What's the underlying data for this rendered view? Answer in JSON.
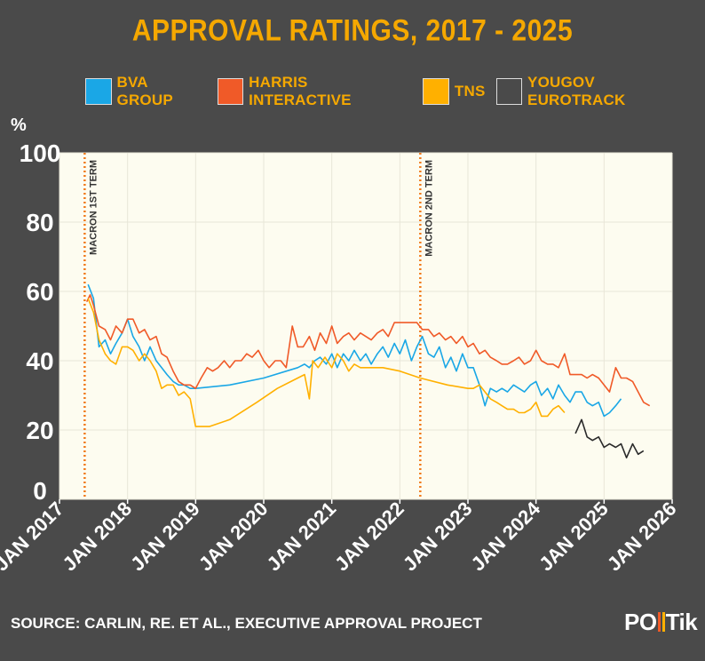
{
  "chart_data": {
    "type": "line",
    "title": "APPROVAL RATINGS, 2017 - 2025",
    "ylabel": "%",
    "xlabel": "",
    "ylim": [
      0,
      100
    ],
    "xlim": [
      2017.0,
      2026.0
    ],
    "yticks": [
      0,
      20,
      40,
      60,
      80,
      100
    ],
    "xticks": [
      {
        "value": 2017,
        "label": "JAN 2017"
      },
      {
        "value": 2018,
        "label": "JAN 2018"
      },
      {
        "value": 2019,
        "label": "JAN 2019"
      },
      {
        "value": 2020,
        "label": "JAN 2020"
      },
      {
        "value": 2021,
        "label": "JAN 2021"
      },
      {
        "value": 2022,
        "label": "JAN 2022"
      },
      {
        "value": 2023,
        "label": "JAN 2023"
      },
      {
        "value": 2024,
        "label": "JAN 2024"
      },
      {
        "value": 2025,
        "label": "JAN 2025"
      },
      {
        "value": 2026,
        "label": "JAN 2026"
      }
    ],
    "grid": true,
    "legend_position": "top",
    "annotations": [
      {
        "x": 2017.37,
        "label": "MACRON 1ST TERM"
      },
      {
        "x": 2022.3,
        "label": "MACRON 2ND TERM"
      }
    ],
    "series": [
      {
        "name": "BVA GROUP",
        "color": "#1aa7e6",
        "points": [
          [
            2017.42,
            62
          ],
          [
            2017.5,
            58
          ],
          [
            2017.58,
            44
          ],
          [
            2017.67,
            46
          ],
          [
            2017.75,
            42
          ],
          [
            2017.83,
            45
          ],
          [
            2017.92,
            48
          ],
          [
            2018.0,
            52
          ],
          [
            2018.08,
            47
          ],
          [
            2018.17,
            44
          ],
          [
            2018.25,
            40
          ],
          [
            2018.33,
            44
          ],
          [
            2018.42,
            40
          ],
          [
            2018.5,
            38
          ],
          [
            2018.58,
            36
          ],
          [
            2018.67,
            34
          ],
          [
            2018.75,
            33
          ],
          [
            2018.83,
            33
          ],
          [
            2018.92,
            32
          ],
          [
            2019.0,
            32
          ],
          [
            2019.5,
            33
          ],
          [
            2020.0,
            35
          ],
          [
            2020.5,
            38
          ],
          [
            2020.6,
            39
          ],
          [
            2020.67,
            38
          ],
          [
            2020.75,
            40
          ],
          [
            2020.83,
            41
          ],
          [
            2020.92,
            39
          ],
          [
            2021.0,
            42
          ],
          [
            2021.08,
            38
          ],
          [
            2021.17,
            42
          ],
          [
            2021.25,
            40
          ],
          [
            2021.33,
            43
          ],
          [
            2021.42,
            40
          ],
          [
            2021.5,
            42
          ],
          [
            2021.58,
            39
          ],
          [
            2021.67,
            42
          ],
          [
            2021.75,
            44
          ],
          [
            2021.83,
            41
          ],
          [
            2021.92,
            45
          ],
          [
            2022.0,
            42
          ],
          [
            2022.08,
            46
          ],
          [
            2022.17,
            40
          ],
          [
            2022.25,
            44
          ],
          [
            2022.33,
            47
          ],
          [
            2022.42,
            42
          ],
          [
            2022.5,
            41
          ],
          [
            2022.58,
            44
          ],
          [
            2022.67,
            38
          ],
          [
            2022.75,
            41
          ],
          [
            2022.83,
            37
          ],
          [
            2022.92,
            42
          ],
          [
            2023.0,
            38
          ],
          [
            2023.08,
            38
          ],
          [
            2023.17,
            33
          ],
          [
            2023.25,
            27
          ],
          [
            2023.33,
            32
          ],
          [
            2023.42,
            31
          ],
          [
            2023.5,
            32
          ],
          [
            2023.58,
            31
          ],
          [
            2023.67,
            33
          ],
          [
            2023.75,
            32
          ],
          [
            2023.83,
            31
          ],
          [
            2023.92,
            33
          ],
          [
            2024.0,
            34
          ],
          [
            2024.08,
            30
          ],
          [
            2024.17,
            32
          ],
          [
            2024.25,
            29
          ],
          [
            2024.33,
            33
          ],
          [
            2024.42,
            30
          ],
          [
            2024.5,
            28
          ],
          [
            2024.58,
            31
          ],
          [
            2024.67,
            31
          ],
          [
            2024.75,
            28
          ],
          [
            2024.83,
            27
          ],
          [
            2024.92,
            28
          ],
          [
            2025.0,
            24
          ],
          [
            2025.08,
            25
          ],
          [
            2025.17,
            27
          ],
          [
            2025.25,
            29
          ]
        ]
      },
      {
        "name": "HARRIS INTERACTIVE",
        "color": "#f05a28",
        "points": [
          [
            2017.4,
            57
          ],
          [
            2017.45,
            59
          ],
          [
            2017.5,
            56
          ],
          [
            2017.58,
            50
          ],
          [
            2017.67,
            49
          ],
          [
            2017.75,
            46
          ],
          [
            2017.83,
            50
          ],
          [
            2017.92,
            48
          ],
          [
            2018.0,
            52
          ],
          [
            2018.08,
            52
          ],
          [
            2018.17,
            48
          ],
          [
            2018.25,
            49
          ],
          [
            2018.33,
            46
          ],
          [
            2018.42,
            47
          ],
          [
            2018.5,
            42
          ],
          [
            2018.58,
            41
          ],
          [
            2018.67,
            37
          ],
          [
            2018.75,
            34
          ],
          [
            2018.83,
            33
          ],
          [
            2018.92,
            33
          ],
          [
            2019.0,
            32
          ],
          [
            2019.08,
            35
          ],
          [
            2019.17,
            38
          ],
          [
            2019.25,
            37
          ],
          [
            2019.33,
            38
          ],
          [
            2019.42,
            40
          ],
          [
            2019.5,
            38
          ],
          [
            2019.58,
            40
          ],
          [
            2019.67,
            40
          ],
          [
            2019.75,
            42
          ],
          [
            2019.83,
            41
          ],
          [
            2019.92,
            43
          ],
          [
            2020.0,
            40
          ],
          [
            2020.08,
            38
          ],
          [
            2020.17,
            40
          ],
          [
            2020.25,
            40
          ],
          [
            2020.33,
            38
          ],
          [
            2020.42,
            50
          ],
          [
            2020.5,
            44
          ],
          [
            2020.58,
            44
          ],
          [
            2020.67,
            47
          ],
          [
            2020.75,
            43
          ],
          [
            2020.83,
            48
          ],
          [
            2020.92,
            45
          ],
          [
            2021.0,
            50
          ],
          [
            2021.08,
            45
          ],
          [
            2021.17,
            47
          ],
          [
            2021.25,
            48
          ],
          [
            2021.33,
            46
          ],
          [
            2021.42,
            48
          ],
          [
            2021.5,
            47
          ],
          [
            2021.58,
            46
          ],
          [
            2021.67,
            48
          ],
          [
            2021.75,
            49
          ],
          [
            2021.83,
            47
          ],
          [
            2021.92,
            51
          ],
          [
            2022.0,
            51
          ],
          [
            2022.08,
            51
          ],
          [
            2022.17,
            51
          ],
          [
            2022.25,
            51
          ],
          [
            2022.33,
            49
          ],
          [
            2022.42,
            49
          ],
          [
            2022.5,
            47
          ],
          [
            2022.58,
            48
          ],
          [
            2022.67,
            46
          ],
          [
            2022.75,
            47
          ],
          [
            2022.83,
            45
          ],
          [
            2022.92,
            47
          ],
          [
            2023.0,
            44
          ],
          [
            2023.08,
            45
          ],
          [
            2023.17,
            42
          ],
          [
            2023.25,
            43
          ],
          [
            2023.33,
            41
          ],
          [
            2023.42,
            40
          ],
          [
            2023.5,
            39
          ],
          [
            2023.58,
            39
          ],
          [
            2023.67,
            40
          ],
          [
            2023.75,
            41
          ],
          [
            2023.83,
            39
          ],
          [
            2023.92,
            40
          ],
          [
            2024.0,
            43
          ],
          [
            2024.08,
            40
          ],
          [
            2024.17,
            39
          ],
          [
            2024.25,
            39
          ],
          [
            2024.33,
            38
          ],
          [
            2024.42,
            42
          ],
          [
            2024.5,
            36
          ],
          [
            2024.58,
            36
          ],
          [
            2024.67,
            36
          ],
          [
            2024.75,
            35
          ],
          [
            2024.83,
            36
          ],
          [
            2024.92,
            35
          ],
          [
            2025.0,
            33
          ],
          [
            2025.08,
            31
          ],
          [
            2025.17,
            38
          ],
          [
            2025.25,
            35
          ],
          [
            2025.33,
            35
          ],
          [
            2025.42,
            34
          ],
          [
            2025.5,
            31
          ],
          [
            2025.58,
            28
          ],
          [
            2025.67,
            27
          ]
        ]
      },
      {
        "name": "TNS",
        "color": "#ffb000",
        "points": [
          [
            2017.42,
            58
          ],
          [
            2017.5,
            54
          ],
          [
            2017.58,
            46
          ],
          [
            2017.67,
            42
          ],
          [
            2017.75,
            40
          ],
          [
            2017.83,
            39
          ],
          [
            2017.92,
            44
          ],
          [
            2018.0,
            44
          ],
          [
            2018.08,
            43
          ],
          [
            2018.17,
            40
          ],
          [
            2018.25,
            42
          ],
          [
            2018.33,
            40
          ],
          [
            2018.42,
            37
          ],
          [
            2018.5,
            32
          ],
          [
            2018.58,
            33
          ],
          [
            2018.67,
            33
          ],
          [
            2018.75,
            30
          ],
          [
            2018.83,
            31
          ],
          [
            2018.92,
            29
          ],
          [
            2019.0,
            21
          ],
          [
            2019.2,
            21
          ],
          [
            2019.5,
            23
          ],
          [
            2019.9,
            28
          ],
          [
            2020.2,
            32
          ],
          [
            2020.5,
            35
          ],
          [
            2020.6,
            36
          ],
          [
            2020.67,
            29
          ],
          [
            2020.72,
            40
          ],
          [
            2020.8,
            38
          ],
          [
            2020.9,
            41
          ],
          [
            2021.0,
            38
          ],
          [
            2021.08,
            42
          ],
          [
            2021.17,
            40
          ],
          [
            2021.25,
            37
          ],
          [
            2021.33,
            39
          ],
          [
            2021.42,
            38
          ],
          [
            2021.75,
            38
          ],
          [
            2022.0,
            37
          ],
          [
            2022.3,
            35
          ],
          [
            2022.7,
            33
          ],
          [
            2023.0,
            32
          ],
          [
            2023.08,
            32
          ],
          [
            2023.17,
            33
          ],
          [
            2023.25,
            31
          ],
          [
            2023.33,
            29
          ],
          [
            2023.42,
            28
          ],
          [
            2023.5,
            27
          ],
          [
            2023.58,
            26
          ],
          [
            2023.67,
            26
          ],
          [
            2023.75,
            25
          ],
          [
            2023.83,
            25
          ],
          [
            2023.92,
            26
          ],
          [
            2024.0,
            28
          ],
          [
            2024.08,
            24
          ],
          [
            2024.17,
            24
          ],
          [
            2024.25,
            26
          ],
          [
            2024.33,
            27
          ],
          [
            2024.42,
            25
          ]
        ]
      },
      {
        "name": "YOUGOV EUROTRACK",
        "color": "#2a2a2a",
        "points": [
          [
            2024.58,
            19
          ],
          [
            2024.67,
            23
          ],
          [
            2024.75,
            18
          ],
          [
            2024.83,
            17
          ],
          [
            2024.92,
            18
          ],
          [
            2025.0,
            15
          ],
          [
            2025.08,
            16
          ],
          [
            2025.17,
            15
          ],
          [
            2025.25,
            16
          ],
          [
            2025.33,
            12
          ],
          [
            2025.42,
            16
          ],
          [
            2025.5,
            13
          ],
          [
            2025.58,
            14
          ]
        ]
      }
    ]
  },
  "source": "SOURCE: CARLIN, RE. ET AL., EXECUTIVE APPROVAL PROJECT",
  "logo": "POliTik"
}
